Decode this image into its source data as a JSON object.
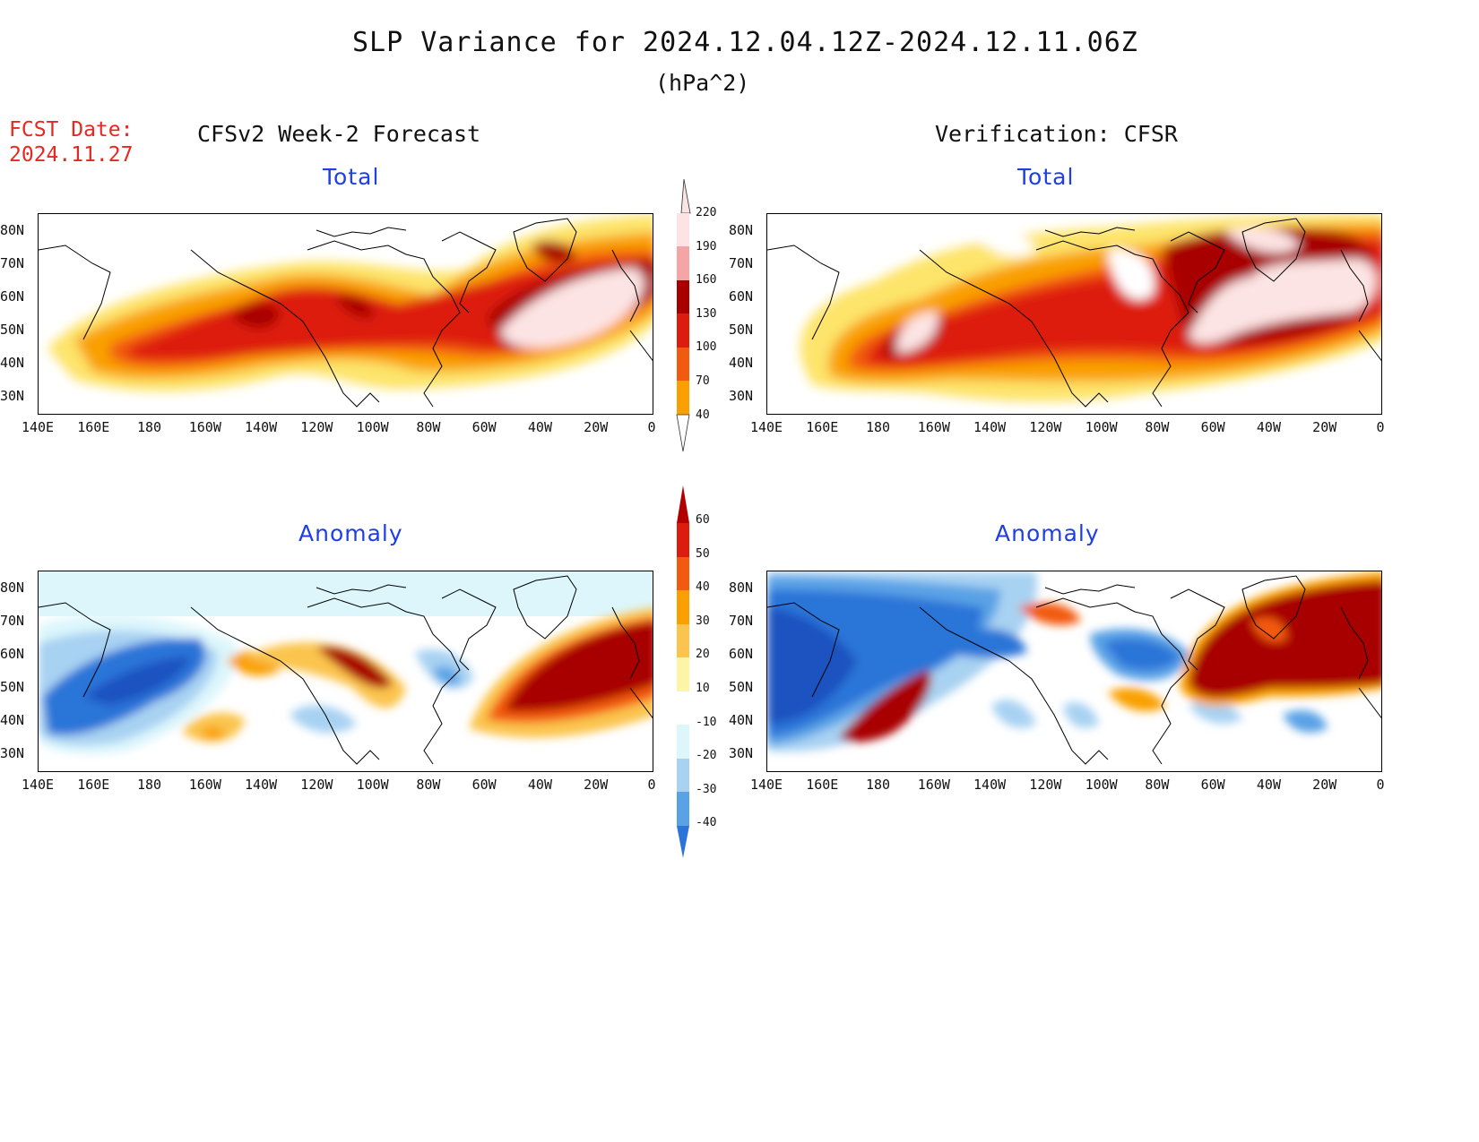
{
  "header": {
    "title": "SLP Variance for 2024.12.04.12Z-2024.12.11.06Z",
    "units": "(hPa^2)",
    "fcst_label": "FCST Date:",
    "fcst_date": "2024.11.27"
  },
  "columns": {
    "left": "CFSv2 Week-2 Forecast",
    "right": "Verification: CFSR"
  },
  "panels": {
    "top_left": "Total",
    "top_right": "Total",
    "bottom_left": "Anomaly",
    "bottom_right": "Anomaly"
  },
  "axes": {
    "lat_labels": [
      "80N",
      "70N",
      "60N",
      "50N",
      "40N",
      "30N"
    ],
    "lon_labels": [
      "140E",
      "160E",
      "180",
      "160W",
      "140W",
      "120W",
      "100W",
      "80W",
      "60W",
      "40W",
      "20W",
      "0"
    ],
    "lat_range": [
      25,
      85
    ],
    "lon_range_east_deg": [
      140,
      360
    ]
  },
  "colorbars": {
    "total": {
      "labels": [
        "220",
        "190",
        "160",
        "130",
        "100",
        "70",
        "40"
      ],
      "colors": [
        "#fde4e4",
        "#f4a6a6",
        "#a80000",
        "#dd1c10",
        "#f25a10",
        "#f9a000",
        "#fde46a"
      ]
    },
    "anomaly": {
      "labels": [
        "60",
        "50",
        "40",
        "30",
        "20",
        "10",
        "-10",
        "-20",
        "-30",
        "-40"
      ],
      "colors": [
        "#b20000",
        "#dd1c10",
        "#f25a10",
        "#f9a000",
        "#fbc44e",
        "#fef4a6",
        "#ffffff",
        "#dcf6fc",
        "#a8d2f2",
        "#5aa2e6",
        "#2c74d8",
        "#1a52c0"
      ]
    }
  }
}
